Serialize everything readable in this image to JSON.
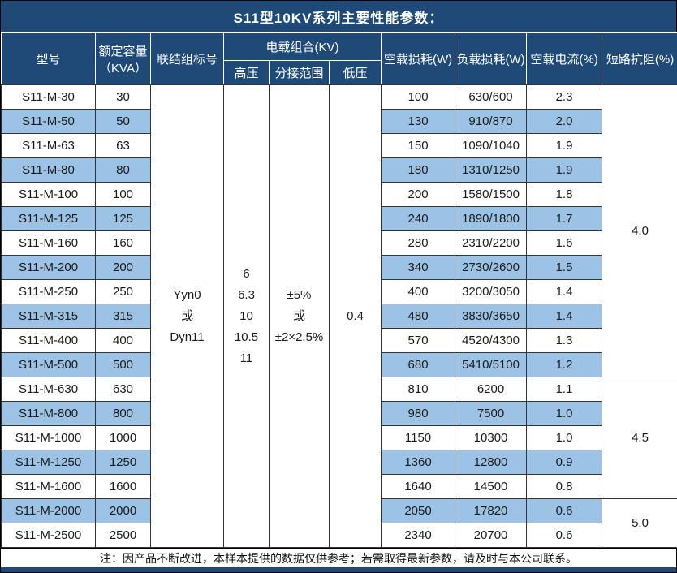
{
  "title": "S11型10KV系列主要性能参数：",
  "colors": {
    "header_navy": "#1F4A78",
    "stripe_blue": "#9CC3E6",
    "grid_line": "#333333"
  },
  "table": {
    "headers": {
      "model": "型号",
      "capacity_line1": "额定容量",
      "capacity_line2": "（KVA）",
      "connection": "联结组标号",
      "voltage_group": "电载组合(KV)",
      "hv": "高压",
      "tap_range": "分接范围",
      "lv": "低压",
      "no_load_loss": "空载损耗(W)",
      "load_loss": "负载损耗(W)",
      "no_load_current": "空载电流(%)",
      "impedance": "短路抗阻(%)"
    },
    "merged": {
      "connection_lines": [
        "Yyn0",
        "或",
        "Dyn11"
      ],
      "hv_lines": [
        "6",
        "6.3",
        "10",
        "10.5",
        "11"
      ],
      "tap_lines": [
        "±5%",
        "或",
        "±2×2.5%"
      ],
      "lv": "0.4"
    },
    "impedance_groups": [
      {
        "value": "4.0",
        "rows": 12
      },
      {
        "value": "4.5",
        "rows": 5
      },
      {
        "value": "5.0",
        "rows": 2
      }
    ],
    "rows": [
      {
        "model": "S11-M-30",
        "capacity": "30",
        "no_load_loss": "100",
        "load_loss": "630/600",
        "no_load_current": "2.3"
      },
      {
        "model": "S11-M-50",
        "capacity": "50",
        "no_load_loss": "130",
        "load_loss": "910/870",
        "no_load_current": "2.0"
      },
      {
        "model": "S11-M-63",
        "capacity": "63",
        "no_load_loss": "150",
        "load_loss": "1090/1040",
        "no_load_current": "1.9"
      },
      {
        "model": "S11-M-80",
        "capacity": "80",
        "no_load_loss": "180",
        "load_loss": "1310/1250",
        "no_load_current": "1.9"
      },
      {
        "model": "S11-M-100",
        "capacity": "100",
        "no_load_loss": "200",
        "load_loss": "1580/1500",
        "no_load_current": "1.8"
      },
      {
        "model": "S11-M-125",
        "capacity": "125",
        "no_load_loss": "240",
        "load_loss": "1890/1800",
        "no_load_current": "1.7"
      },
      {
        "model": "S11-M-160",
        "capacity": "160",
        "no_load_loss": "280",
        "load_loss": "2310/2200",
        "no_load_current": "1.6"
      },
      {
        "model": "S11-M-200",
        "capacity": "200",
        "no_load_loss": "340",
        "load_loss": "2730/2600",
        "no_load_current": "1.5"
      },
      {
        "model": "S11-M-250",
        "capacity": "250",
        "no_load_loss": "400",
        "load_loss": "3200/3050",
        "no_load_current": "1.4"
      },
      {
        "model": "S11-M-315",
        "capacity": "315",
        "no_load_loss": "480",
        "load_loss": "3830/3650",
        "no_load_current": "1.4"
      },
      {
        "model": "S11-M-400",
        "capacity": "400",
        "no_load_loss": "570",
        "load_loss": "4520/4300",
        "no_load_current": "1.3"
      },
      {
        "model": "S11-M-500",
        "capacity": "500",
        "no_load_loss": "680",
        "load_loss": "5410/5100",
        "no_load_current": "1.2"
      },
      {
        "model": "S11-M-630",
        "capacity": "630",
        "no_load_loss": "810",
        "load_loss": "6200",
        "no_load_current": "1.1"
      },
      {
        "model": "S11-M-800",
        "capacity": "800",
        "no_load_loss": "980",
        "load_loss": "7500",
        "no_load_current": "1.0"
      },
      {
        "model": "S11-M-1000",
        "capacity": "1000",
        "no_load_loss": "1150",
        "load_loss": "10300",
        "no_load_current": "1.0"
      },
      {
        "model": "S11-M-1250",
        "capacity": "1250",
        "no_load_loss": "1360",
        "load_loss": "12800",
        "no_load_current": "0.9"
      },
      {
        "model": "S11-M-1600",
        "capacity": "1600",
        "no_load_loss": "1640",
        "load_loss": "14500",
        "no_load_current": "0.8"
      },
      {
        "model": "S11-M-2000",
        "capacity": "2000",
        "no_load_loss": "2050",
        "load_loss": "17820",
        "no_load_current": "0.6"
      },
      {
        "model": "S11-M-2500",
        "capacity": "2500",
        "no_load_loss": "2340",
        "load_loss": "20700",
        "no_load_current": "0.6"
      }
    ]
  },
  "footer": "注：因产品不断改进，本样本提供的数据仅供参考；若需取得最新参数，请及时与本公司联系。"
}
